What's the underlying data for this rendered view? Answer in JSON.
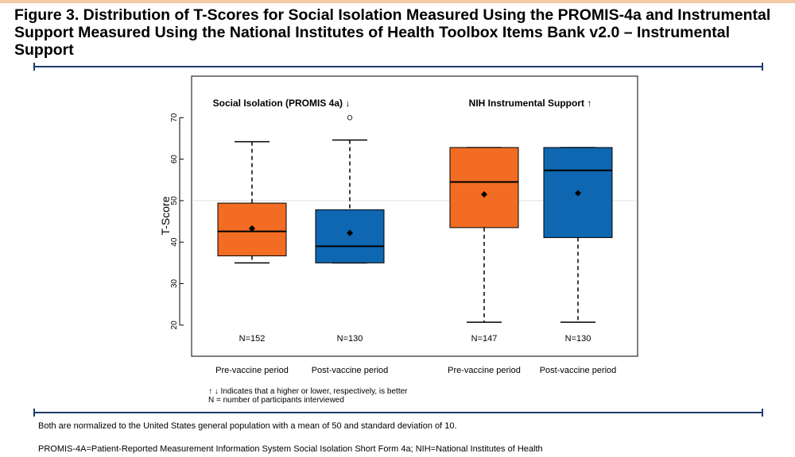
{
  "figure": {
    "title": "Figure 3. Distribution of T-Scores for Social Isolation Measured Using the PROMIS-4a and Instrumental Support Measured Using the National Institutes of Health Toolbox Items Bank v2.0 – Instrumental Support"
  },
  "notes": {
    "legend_line_1": "↑ ↓ Indicates that a higher or lower, respectively, is better",
    "legend_line_2": "N = number of participants interviewed",
    "normalization": "Both are normalized to the United States general population with a mean of 50 and standard deviation of 10.",
    "abbreviations": "PROMIS-4A=Patient-Reported Measurement Information System Social Isolation Short Form 4a; NIH=National Institutes of Health"
  },
  "colors": {
    "pre": "#f26d23",
    "post": "#0e67b0",
    "rule": "#1f3a6b"
  },
  "chart_data": {
    "type": "boxplot",
    "ylabel": "T-Score",
    "ylim": [
      12.5,
      80
    ],
    "yticks": [
      20,
      30,
      40,
      50,
      60,
      70
    ],
    "reference_line": 50,
    "groups": [
      {
        "label": "Social Isolation (PROMIS 4a) ↓",
        "boxes": [
          {
            "category": "Pre-vaccine period",
            "period": "pre",
            "n_label": "N=152",
            "min": 35,
            "q1": 36.7,
            "median": 42.6,
            "q3": 49.4,
            "max": 64.2,
            "mean": 43.3,
            "outliers": []
          },
          {
            "category": "Post-vaccine period",
            "period": "post",
            "n_label": "N=130",
            "min": 35,
            "q1": 35,
            "median": 39,
            "q3": 47.8,
            "max": 64.6,
            "mean": 42.2,
            "outliers": [
              70
            ]
          }
        ]
      },
      {
        "label": "NIH Instrumental Support ↑",
        "boxes": [
          {
            "category": "Pre-vaccine period",
            "period": "pre",
            "n_label": "N=147",
            "min": 20.7,
            "q1": 43.5,
            "median": 54.5,
            "q3": 62.8,
            "max": 62.8,
            "mean": 51.5,
            "outliers": []
          },
          {
            "category": "Post-vaccine period",
            "period": "post",
            "n_label": "N=130",
            "min": 20.7,
            "q1": 41.1,
            "median": 57.3,
            "q3": 62.8,
            "max": 62.8,
            "mean": 51.8,
            "outliers": []
          }
        ]
      }
    ]
  }
}
